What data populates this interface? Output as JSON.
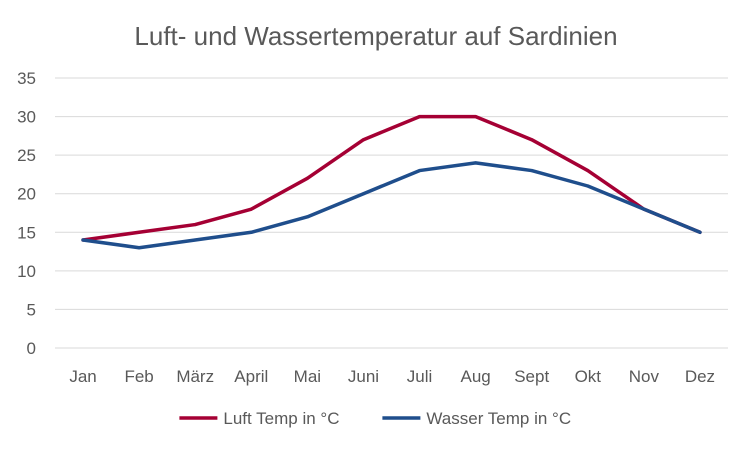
{
  "chart_data": {
    "type": "line",
    "title": "Luft- und Wassertemperatur auf Sardinien",
    "xlabel": "",
    "ylabel": "",
    "categories": [
      "Jan",
      "Feb",
      "März",
      "April",
      "Mai",
      "Juni",
      "Juli",
      "Aug",
      "Sept",
      "Okt",
      "Nov",
      "Dez"
    ],
    "ylim": [
      0,
      35
    ],
    "yticks": [
      0,
      5,
      10,
      15,
      20,
      25,
      30,
      35
    ],
    "grid": true,
    "legend_position": "bottom",
    "series": [
      {
        "name": "Luft Temp in °C",
        "color": "#a50034",
        "values": [
          14,
          15,
          16,
          18,
          22,
          27,
          30,
          30,
          27,
          23,
          18,
          15
        ]
      },
      {
        "name": "Wasser Temp in °C",
        "color": "#1f4e8c",
        "values": [
          14,
          13,
          14,
          15,
          17,
          20,
          23,
          24,
          23,
          21,
          18,
          15
        ]
      }
    ]
  }
}
